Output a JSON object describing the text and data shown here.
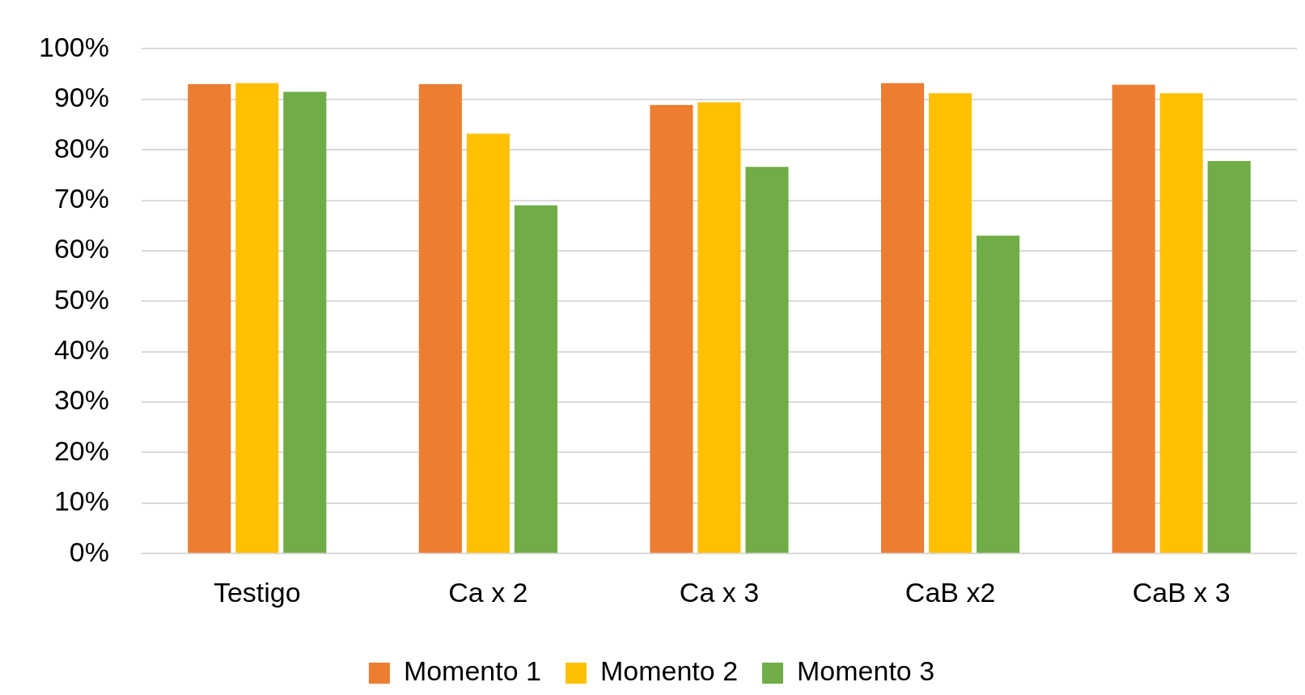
{
  "chart_data": {
    "type": "bar",
    "categories": [
      "Testigo",
      "Ca x 2",
      "Ca x 3",
      "CaB x2",
      "CaB x 3"
    ],
    "series": [
      {
        "name": "Momento 1",
        "color": "#ed7d31",
        "values": [
          93,
          93,
          88.9,
          93.2,
          92.9
        ]
      },
      {
        "name": "Momento 2",
        "color": "#ffc000",
        "values": [
          93.2,
          83.2,
          89.4,
          91.2,
          91.2
        ]
      },
      {
        "name": "Momento 3",
        "color": "#70ad47",
        "values": [
          91.5,
          69,
          76.6,
          63,
          77.8
        ]
      }
    ],
    "ylim": [
      0,
      100
    ],
    "yticks": [
      {
        "value": 0,
        "label": "0%"
      },
      {
        "value": 10,
        "label": "10%"
      },
      {
        "value": 20,
        "label": "20%"
      },
      {
        "value": 30,
        "label": "30%"
      },
      {
        "value": 40,
        "label": "40%"
      },
      {
        "value": 50,
        "label": "50%"
      },
      {
        "value": 60,
        "label": "60%"
      },
      {
        "value": 70,
        "label": "70%"
      },
      {
        "value": 80,
        "label": "80%"
      },
      {
        "value": 90,
        "label": "90%"
      },
      {
        "value": 100,
        "label": "100%"
      }
    ],
    "grid": "y",
    "legend": "bottom"
  }
}
